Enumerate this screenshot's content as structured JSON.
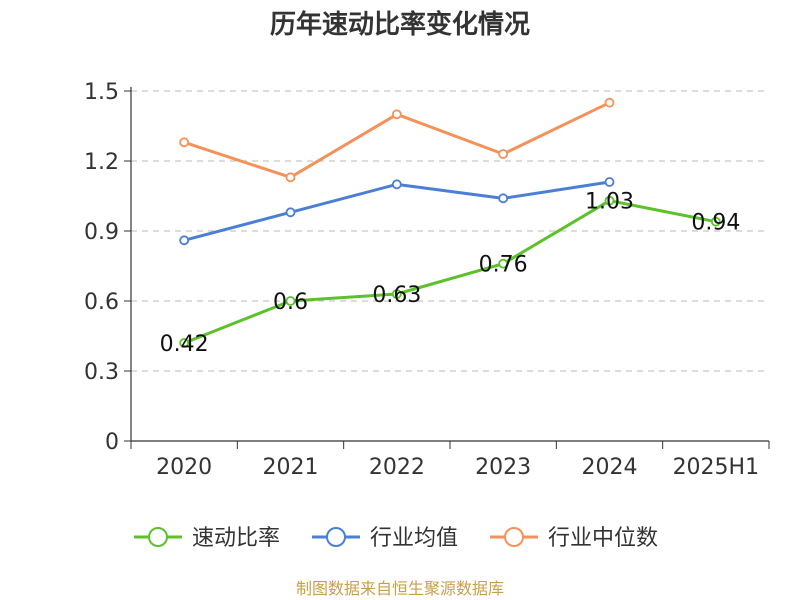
{
  "chart_data": {
    "type": "line",
    "title": "历年速动比率变化情况",
    "xlabel": "",
    "ylabel": "",
    "categories": [
      "2020",
      "2021",
      "2022",
      "2023",
      "2024",
      "2025H1"
    ],
    "ylim": [
      0,
      1.5
    ],
    "yticks": [
      "0",
      "0.3",
      "0.6",
      "0.9",
      "1.2",
      "1.5"
    ],
    "grid": true,
    "legend_position": "bottom",
    "series": [
      {
        "name": "速动比率",
        "color": "#5cc12a",
        "values": [
          0.42,
          0.6,
          0.63,
          0.76,
          1.03,
          0.94
        ],
        "labels": [
          "0.42",
          "0.6",
          "0.63",
          "0.76",
          "1.03",
          "0.94"
        ]
      },
      {
        "name": "行业均值",
        "color": "#4b7fd6",
        "values": [
          0.86,
          0.98,
          1.1,
          1.04,
          1.11,
          null
        ]
      },
      {
        "name": "行业中位数",
        "color": "#f5915a",
        "values": [
          1.28,
          1.13,
          1.4,
          1.23,
          1.45,
          null
        ]
      }
    ]
  },
  "source": "制图数据来自恒生聚源数据库"
}
